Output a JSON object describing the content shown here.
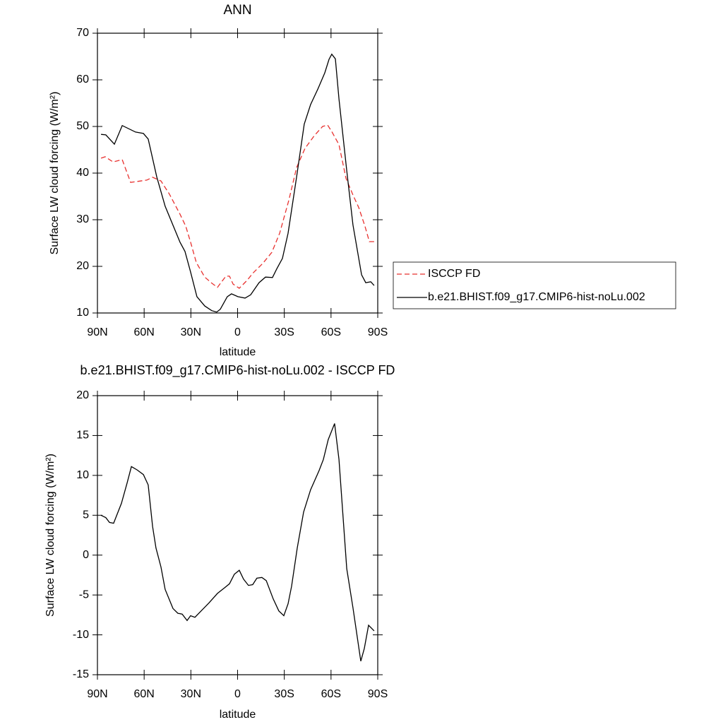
{
  "chart_data": [
    {
      "type": "line",
      "title": "ANN",
      "xlabel": "latitude",
      "ylabel": "Surface LW cloud forcing (W/m²)",
      "xlim": [
        90,
        -90
      ],
      "xticks": [
        {
          "value": 90,
          "label": "90N"
        },
        {
          "value": 60,
          "label": "60N"
        },
        {
          "value": 30,
          "label": "30N"
        },
        0,
        {
          "value": -30,
          "label": "30S"
        },
        {
          "value": -60,
          "label": "60S"
        },
        {
          "value": -90,
          "label": "90S"
        }
      ],
      "ylim": [
        10,
        70
      ],
      "yticks": [
        10,
        20,
        30,
        40,
        50,
        60,
        70
      ],
      "legend": "right",
      "series": [
        {
          "name": "ISCCP FD",
          "color": "#e8312f",
          "dashed": true,
          "x": [
            87.7,
            85,
            80,
            74.1,
            68.7,
            58.3,
            54.6,
            49.2,
            43.8,
            37,
            33.3,
            30.2,
            26.5,
            21.1,
            16.6,
            12.9,
            10.7,
            7.5,
            5.2,
            2.9,
            -1.1,
            -6.1,
            -9.7,
            -16.1,
            -22,
            -27,
            -32.9,
            -37.9,
            -43.3,
            -49.2,
            -54.6,
            -57.8,
            -60.5,
            -65.1,
            -69.6,
            -74.1,
            -77.8,
            -81.8,
            -84.6,
            -87.7
          ],
          "values": [
            43.2,
            43.5,
            42.4,
            42.9,
            38.0,
            38.5,
            39.1,
            38.3,
            35.5,
            31.2,
            28.6,
            25.2,
            20.8,
            17.7,
            16.4,
            15.5,
            16.5,
            17.9,
            17.9,
            16.2,
            15.3,
            17.0,
            18.5,
            20.6,
            23.0,
            27.1,
            34.2,
            41.2,
            45.3,
            48.0,
            50.0,
            50.3,
            48.9,
            46.1,
            38.9,
            35.3,
            32.6,
            28.6,
            25.3,
            25.3
          ]
        },
        {
          "name": "b.e21.BHIST.f09_g17.CMIP6-hist-noLu.002",
          "color": "#000000",
          "dashed": false,
          "x": [
            87.7,
            84.6,
            79.1,
            74.1,
            65.5,
            60.5,
            57.4,
            51.9,
            46.5,
            37,
            33.8,
            30.2,
            26.1,
            21.1,
            16.6,
            13.4,
            11.1,
            6.6,
            3.9,
            -0.2,
            -4.8,
            -8.4,
            -13.8,
            -17.9,
            -22.4,
            -25.2,
            -28.8,
            -32.4,
            -37.9,
            -42.8,
            -46.9,
            -51.5,
            -56,
            -58.7,
            -60.5,
            -62.8,
            -65.1,
            -70,
            -74.1,
            -79.6,
            -82.3,
            -85.5,
            -87.7
          ],
          "values": [
            48.3,
            48.2,
            46.2,
            50.2,
            48.8,
            48.5,
            47.3,
            39.2,
            32.9,
            25.2,
            23.2,
            18.8,
            13.5,
            11.5,
            10.5,
            10.2,
            10.8,
            13.5,
            14.1,
            13.5,
            13.2,
            13.9,
            16.5,
            17.7,
            17.6,
            19.5,
            21.7,
            27.1,
            39.2,
            50.5,
            54.7,
            58.0,
            61.5,
            64.4,
            65.5,
            64.5,
            55.9,
            40.8,
            28.9,
            18.2,
            16.5,
            16.7,
            15.9
          ]
        }
      ]
    },
    {
      "type": "line",
      "title": "b.e21.BHIST.f09_g17.CMIP6-hist-noLu.002 - ISCCP FD",
      "xlabel": "latitude",
      "ylabel": "Surface LW cloud forcing (W/m²)",
      "xlim": [
        90,
        -90
      ],
      "xticks": [
        {
          "value": 90,
          "label": "90N"
        },
        {
          "value": 60,
          "label": "60N"
        },
        {
          "value": 30,
          "label": "30N"
        },
        0,
        {
          "value": -30,
          "label": "30S"
        },
        {
          "value": -60,
          "label": "60S"
        },
        {
          "value": -90,
          "label": "90S"
        }
      ],
      "ylim": [
        -15,
        20
      ],
      "yticks": [
        -15,
        -10,
        -5,
        0,
        5,
        10,
        15,
        20
      ],
      "series": [
        {
          "color": "#000000",
          "dashed": false,
          "x": [
            87.7,
            84.6,
            82.3,
            79.6,
            74.6,
            71,
            68.2,
            64.6,
            60.5,
            57.4,
            54.6,
            52.4,
            49.2,
            46.5,
            41.5,
            38.3,
            35.6,
            32.4,
            30.2,
            27.4,
            23.4,
            18.4,
            12.9,
            8.4,
            5.2,
            2.1,
            -1.1,
            -3.8,
            -7,
            -9.7,
            -12.4,
            -15.6,
            -18.4,
            -22.9,
            -26.5,
            -29.7,
            -32.4,
            -34.7,
            -38.3,
            -42.4,
            -46.9,
            -52.3,
            -55.1,
            -58.2,
            -62.3,
            -65.1,
            -70.1,
            -74.1,
            -79.1,
            -81.4,
            -84.1,
            -87.7
          ],
          "values": [
            5.0,
            4.7,
            4.1,
            4.0,
            6.5,
            9.0,
            11.1,
            10.7,
            10.1,
            8.8,
            3.6,
            0.9,
            -1.5,
            -4.3,
            -6.7,
            -7.3,
            -7.4,
            -8.2,
            -7.6,
            -7.8,
            -7.0,
            -6.0,
            -4.8,
            -4.1,
            -3.6,
            -2.4,
            -1.9,
            -3.0,
            -3.8,
            -3.7,
            -2.9,
            -2.8,
            -3.2,
            -5.5,
            -7.0,
            -7.6,
            -6.1,
            -3.9,
            0.9,
            5.4,
            8.2,
            10.6,
            12.0,
            14.5,
            16.5,
            12.0,
            -1.7,
            -6.6,
            -13.3,
            -11.7,
            -8.8,
            -9.5
          ]
        }
      ]
    }
  ]
}
